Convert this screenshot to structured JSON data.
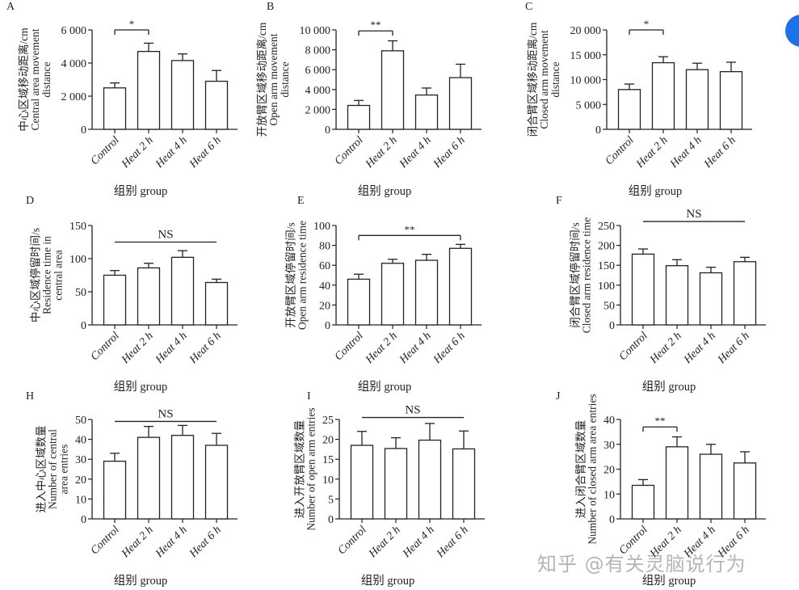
{
  "watermark": "知乎 @有关灵脑说行为",
  "colors": {
    "accent": "#1a73e8",
    "ink": "#222222",
    "bar_fill": "#ffffff"
  },
  "chart_data": [
    {
      "panel": "A",
      "type": "bar",
      "categories": [
        "Control",
        "Heat 2 h",
        "Heat 4 h",
        "Heat 6 h"
      ],
      "values": [
        2500,
        4700,
        4150,
        2900
      ],
      "errors": [
        300,
        500,
        400,
        650
      ],
      "ylabel": [
        "中心区域移动距离/cm",
        "Central area movement",
        "distance"
      ],
      "xlabel": "组别  group",
      "ylim": [
        0,
        6000
      ],
      "ticks": [
        0,
        2000,
        4000,
        6000
      ],
      "tick_labels": [
        "0",
        "2 000",
        "4 000",
        "6 000"
      ],
      "significance": {
        "from": 0,
        "to": 1,
        "level": 6000,
        "label": "*",
        "brackets": true
      }
    },
    {
      "panel": "B",
      "type": "bar",
      "categories": [
        "Control",
        "Heat 2 h",
        "Heat 4 h",
        "Heat 6 h"
      ],
      "values": [
        2400,
        7900,
        3450,
        5200
      ],
      "errors": [
        500,
        1000,
        700,
        1350
      ],
      "ylabel": [
        "开放臂区域移动距离/cm",
        "Open arm movement",
        "distance"
      ],
      "xlabel": "组别  group",
      "ylim": [
        0,
        10000
      ],
      "ticks": [
        0,
        2000,
        4000,
        6000,
        8000,
        10000
      ],
      "tick_labels": [
        "0",
        "2 000",
        "4 000",
        "6 000",
        "8 000",
        "10 000"
      ],
      "significance": {
        "from": 0,
        "to": 1,
        "level": 9900,
        "label": "**",
        "brackets": true
      }
    },
    {
      "panel": "C",
      "type": "bar",
      "categories": [
        "Control",
        "Heat 2 h",
        "Heat 4 h",
        "Heat 6 h"
      ],
      "values": [
        8000,
        13400,
        12000,
        11600
      ],
      "errors": [
        1100,
        1200,
        1300,
        1900
      ],
      "ylabel": [
        "闭合臂区域移动距离/cm",
        "Closed arm movement",
        "distance"
      ],
      "xlabel": "组别  group",
      "ylim": [
        0,
        20000
      ],
      "ticks": [
        0,
        5000,
        10000,
        15000,
        20000
      ],
      "tick_labels": [
        "0",
        "5 000",
        "10 000",
        "15 000",
        "20 000"
      ],
      "significance": {
        "from": 0,
        "to": 1,
        "level": 20000,
        "label": "*",
        "brackets": true
      }
    },
    {
      "panel": "D",
      "type": "bar",
      "categories": [
        "Control",
        "Heat 2 h",
        "Heat 4 h",
        "Heat 6 h"
      ],
      "values": [
        75,
        86,
        102,
        64
      ],
      "errors": [
        7,
        7,
        10,
        5
      ],
      "ylabel": [
        "中心区域停留时间/s",
        "Residence time in",
        "central area"
      ],
      "xlabel": "组别  group",
      "ylim": [
        0,
        150
      ],
      "ticks": [
        0,
        50,
        100,
        150
      ],
      "tick_labels": [
        "0",
        "50",
        "100",
        "150"
      ],
      "significance": {
        "from": 0,
        "to": 3,
        "level": 125,
        "label": "NS",
        "brackets": false
      }
    },
    {
      "panel": "E",
      "type": "bar",
      "categories": [
        "Control",
        "Heat 2 h",
        "Heat 4 h",
        "Heat 6 h"
      ],
      "values": [
        46,
        62,
        65,
        77
      ],
      "errors": [
        5,
        4,
        6,
        4
      ],
      "ylabel": [
        "开放臂区域停留时间/s",
        "Open arm residence time"
      ],
      "xlabel": "组别  group",
      "ylim": [
        0,
        100
      ],
      "ticks": [
        0,
        20,
        40,
        60,
        80,
        100
      ],
      "tick_labels": [
        "0",
        "20",
        "40",
        "60",
        "80",
        "100"
      ],
      "significance": {
        "from": 0,
        "to": 3,
        "level": 90,
        "label": "**",
        "brackets": true
      }
    },
    {
      "panel": "F",
      "type": "bar",
      "categories": [
        "Control",
        "Heat 2 h",
        "Heat 4 h",
        "Heat 6 h"
      ],
      "values": [
        178,
        149,
        131,
        159
      ],
      "errors": [
        13,
        15,
        14,
        11
      ],
      "ylabel": [
        "闭合臂区域停留时间/s",
        "Closed arm residence time"
      ],
      "xlabel": "组别  group",
      "ylim": [
        0,
        250
      ],
      "ticks": [
        0,
        50,
        100,
        150,
        200,
        250
      ],
      "tick_labels": [
        "0",
        "50",
        "100",
        "150",
        "200",
        "250"
      ],
      "significance": {
        "from": 0,
        "to": 3,
        "level": 260,
        "label": "NS",
        "brackets": false
      }
    },
    {
      "panel": "H",
      "type": "bar",
      "categories": [
        "Control",
        "Heat 2 h",
        "Heat 4 h",
        "Heat 6 h"
      ],
      "values": [
        29,
        41,
        42,
        37
      ],
      "errors": [
        4,
        5.5,
        5,
        6
      ],
      "ylabel": [
        "进入中心区域数量",
        "Number of central",
        "area entries"
      ],
      "xlabel": "组别  group",
      "ylim": [
        0,
        50
      ],
      "ticks": [
        0,
        10,
        20,
        30,
        40,
        50
      ],
      "tick_labels": [
        "0",
        "10",
        "20",
        "30",
        "40",
        "50"
      ],
      "significance": {
        "from": 0,
        "to": 3,
        "level": 49,
        "label": "NS",
        "brackets": false
      }
    },
    {
      "panel": "I",
      "type": "bar",
      "categories": [
        "Control",
        "Heat 2 h",
        "Heat 4 h",
        "Heat 6 h"
      ],
      "values": [
        18.5,
        17.7,
        19.8,
        17.6
      ],
      "errors": [
        3.5,
        2.7,
        4.2,
        4.5
      ],
      "ylabel": [
        "进入开放臂区域数量",
        "Number of open arm entries"
      ],
      "xlabel": "组别  group",
      "ylim": [
        0,
        25
      ],
      "ticks": [
        0,
        5,
        10,
        15,
        20,
        25
      ],
      "tick_labels": [
        "0",
        "5",
        "10",
        "15",
        "20",
        "25"
      ],
      "significance": {
        "from": 0,
        "to": 3,
        "level": 25.5,
        "label": "NS",
        "brackets": false
      }
    },
    {
      "panel": "J",
      "type": "bar",
      "categories": [
        "Control",
        "Heat 2 h",
        "Heat 4 h",
        "Heat 6 h"
      ],
      "values": [
        13.5,
        29,
        26,
        22.5
      ],
      "errors": [
        2.3,
        4,
        4,
        4.5
      ],
      "ylabel": [
        "进入闭合臂区域数量",
        "Number of closed arm area entries"
      ],
      "xlabel": "组别  group",
      "ylim": [
        0,
        40
      ],
      "ticks": [
        0,
        10,
        20,
        30,
        40
      ],
      "tick_labels": [
        "0",
        "10",
        "20",
        "30",
        "40"
      ],
      "significance": {
        "from": 0,
        "to": 1,
        "level": 37,
        "label": "**",
        "brackets": true
      }
    }
  ]
}
